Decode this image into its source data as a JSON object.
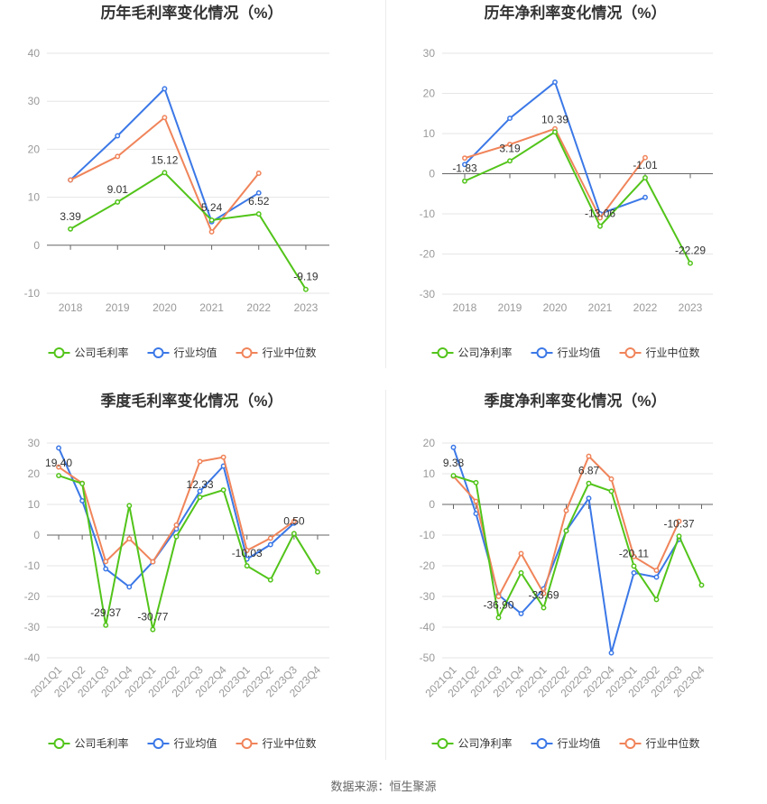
{
  "source_label": "数据来源：恒生聚源",
  "colors": {
    "company": "#52c41a",
    "avg": "#3b78e7",
    "median": "#f0845a"
  },
  "chart_data": [
    {
      "type": "line",
      "title": "历年毛利率变化情况（%）",
      "categories": [
        "2018",
        "2019",
        "2020",
        "2021",
        "2022",
        "2023"
      ],
      "ylim": [
        -10,
        40
      ],
      "yticks": [
        -10,
        0,
        10,
        20,
        30,
        40
      ],
      "series": [
        {
          "name": "公司毛利率",
          "values": [
            3.39,
            9.01,
            15.12,
            5.24,
            6.52,
            -9.19
          ]
        },
        {
          "name": "行业均值",
          "values": [
            13.6,
            22.8,
            32.6,
            4.9,
            10.9,
            null
          ]
        },
        {
          "name": "行业中位数",
          "values": [
            13.6,
            18.5,
            26.6,
            2.8,
            15.0,
            null
          ]
        }
      ],
      "labels": [
        "3.39",
        "9.01",
        "15.12",
        "5.24",
        "6.52",
        "-9.19"
      ]
    },
    {
      "type": "line",
      "title": "历年净利率变化情况（%）",
      "categories": [
        "2018",
        "2019",
        "2020",
        "2021",
        "2022",
        "2023"
      ],
      "ylim": [
        -30,
        30
      ],
      "yticks": [
        -30,
        -20,
        -10,
        0,
        10,
        20,
        30
      ],
      "series": [
        {
          "name": "公司净利率",
          "values": [
            -1.83,
            3.19,
            10.39,
            -13.06,
            -1.01,
            -22.29
          ]
        },
        {
          "name": "行业均值",
          "values": [
            2.3,
            13.8,
            22.8,
            -10.0,
            -5.9,
            null
          ]
        },
        {
          "name": "行业中位数",
          "values": [
            3.9,
            7.3,
            11.2,
            -11.0,
            4.0,
            null
          ]
        }
      ],
      "labels": [
        "-1.83",
        "3.19",
        "10.39",
        "-13.06",
        "-1.01",
        "-22.29"
      ]
    },
    {
      "type": "line",
      "title": "季度毛利率变化情况（%）",
      "categories": [
        "2021Q1",
        "2021Q2",
        "2021Q3",
        "2021Q4",
        "2022Q1",
        "2022Q2",
        "2022Q3",
        "2022Q4",
        "2023Q1",
        "2023Q2",
        "2023Q3",
        "2023Q4"
      ],
      "ylim": [
        -40,
        30
      ],
      "yticks": [
        -40,
        -30,
        -20,
        -10,
        0,
        10,
        20,
        30
      ],
      "series": [
        {
          "name": "公司毛利率",
          "values": [
            19.4,
            16.8,
            -29.37,
            9.6,
            -30.77,
            -0.5,
            12.33,
            14.7,
            -10.03,
            -14.6,
            0.5,
            -12.0
          ]
        },
        {
          "name": "行业均值",
          "values": [
            28.4,
            11.2,
            -11.0,
            -16.9,
            -8.7,
            2.0,
            14.3,
            22.5,
            -7.8,
            -3.1,
            3.9,
            null
          ]
        },
        {
          "name": "行业中位数",
          "values": [
            22.2,
            16.9,
            -8.6,
            -1.2,
            -8.7,
            3.3,
            24.0,
            25.4,
            -5.0,
            -1.0,
            4.5,
            null
          ]
        }
      ],
      "labels": [
        "19.40",
        "",
        "-29.37",
        "",
        "-30.77",
        "",
        "12.33",
        "",
        "-10.03",
        "",
        "0.50",
        ""
      ]
    },
    {
      "type": "line",
      "title": "季度净利率变化情况（%）",
      "categories": [
        "2021Q1",
        "2021Q2",
        "2021Q3",
        "2021Q4",
        "2022Q1",
        "2022Q2",
        "2022Q3",
        "2022Q4",
        "2023Q1",
        "2023Q2",
        "2023Q3",
        "2023Q4"
      ],
      "ylim": [
        -50,
        20
      ],
      "yticks": [
        -50,
        -40,
        -30,
        -20,
        -10,
        0,
        10,
        20
      ],
      "series": [
        {
          "name": "公司净利率",
          "values": [
            9.38,
            7.1,
            -36.9,
            -22.3,
            -33.69,
            -8.6,
            6.87,
            4.3,
            -20.11,
            -31.0,
            -10.37,
            -26.3
          ]
        },
        {
          "name": "行业均值",
          "values": [
            18.6,
            -3.0,
            -29.5,
            -35.6,
            -27.5,
            -8.6,
            2.0,
            -48.4,
            -22.3,
            -23.7,
            -11.4,
            null
          ]
        },
        {
          "name": "行业中位数",
          "values": [
            9.2,
            1.0,
            -30.0,
            -16.0,
            -29.0,
            -2.0,
            15.7,
            8.3,
            -17.0,
            -21.5,
            -5.5,
            null
          ]
        }
      ],
      "labels": [
        "9.38",
        "",
        "-36.90",
        "",
        "-33.69",
        "",
        "6.87",
        "",
        "-20.11",
        "",
        "-10.37",
        ""
      ]
    }
  ]
}
